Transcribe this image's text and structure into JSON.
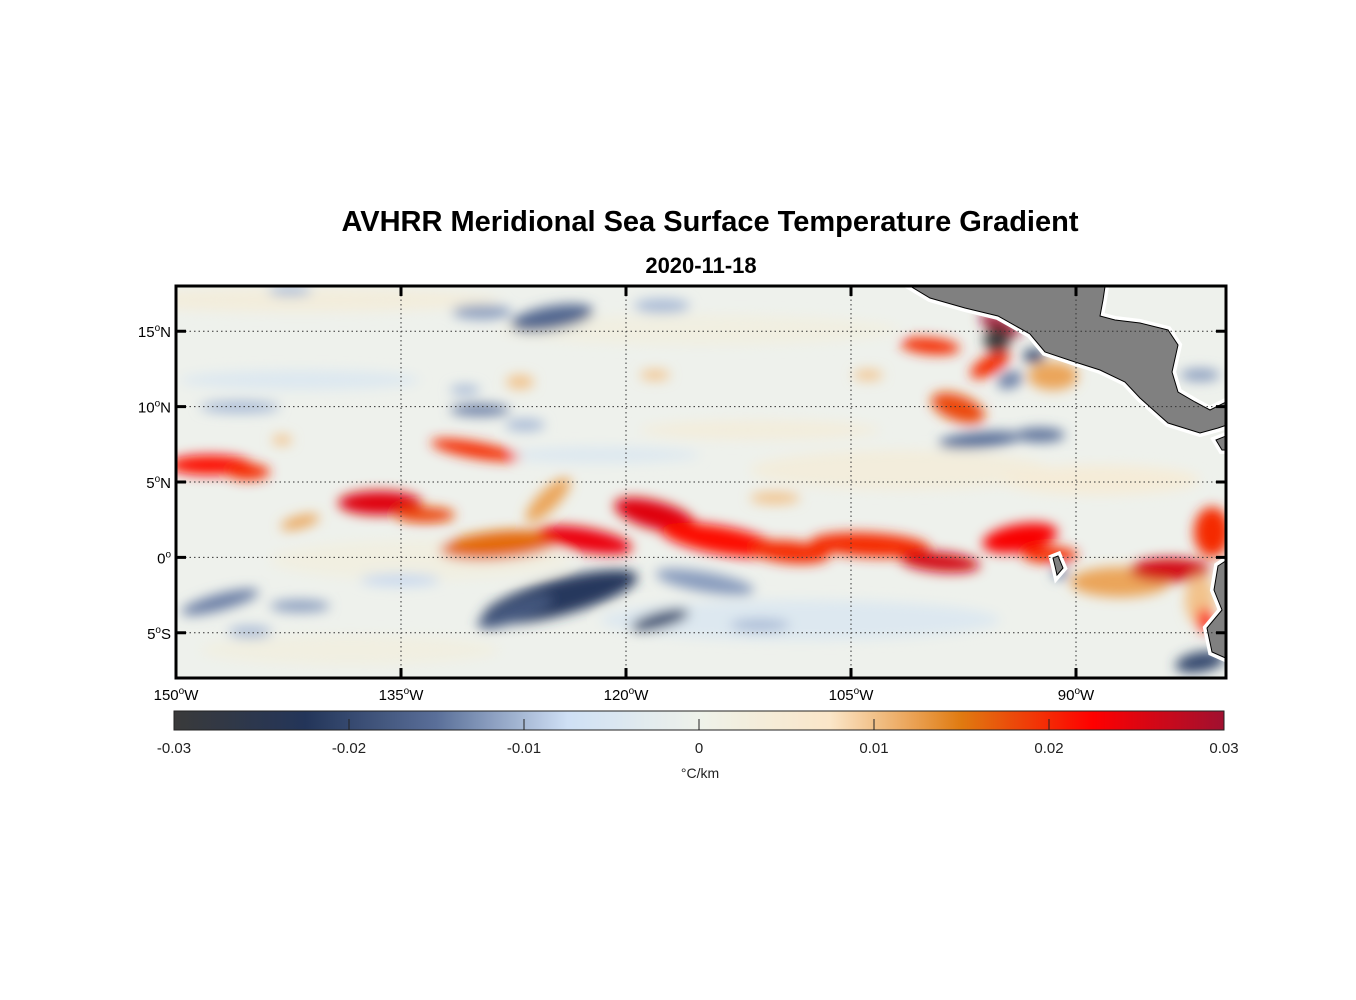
{
  "title": "AVHRR Meridional Sea Surface Temperature Gradient",
  "subtitle": "2020-11-18",
  "chart_data": {
    "type": "heatmap",
    "title": "AVHRR Meridional Sea Surface Temperature Gradient",
    "subtitle": "2020-11-18",
    "lon_range": [
      -150,
      -80
    ],
    "lat_range": [
      -8,
      18
    ],
    "x_ticks": [
      {
        "value": -150,
        "label": "150",
        "suffix": "W"
      },
      {
        "value": -135,
        "label": "135",
        "suffix": "W"
      },
      {
        "value": -120,
        "label": "120",
        "suffix": "W"
      },
      {
        "value": -105,
        "label": "105",
        "suffix": "W"
      },
      {
        "value": -90,
        "label": "90",
        "suffix": "W"
      }
    ],
    "y_ticks": [
      {
        "value": 15,
        "label": "15",
        "suffix": "N"
      },
      {
        "value": 10,
        "label": "10",
        "suffix": "N"
      },
      {
        "value": 5,
        "label": "5",
        "suffix": "N"
      },
      {
        "value": 0,
        "label": "0",
        "suffix": ""
      },
      {
        "value": -5,
        "label": "5",
        "suffix": "S"
      }
    ],
    "grid": true,
    "colorbar": {
      "range": [
        -0.03,
        0.03
      ],
      "ticks": [
        "-0.03",
        "-0.02",
        "-0.01",
        "0",
        "0.01",
        "0.02",
        "0.03"
      ],
      "label": "°C/km",
      "placement": "bottom",
      "colors": [
        "#3a3a3a",
        "#233559",
        "#5a6f99",
        "#cfe0f5",
        "#eef2ea",
        "#fbe6c8",
        "#e07a10",
        "#ff0000",
        "#a01030"
      ]
    },
    "land_color": "#808080",
    "features_note": "approximate gradient features (lon, lat, value in °C/km)",
    "features": [
      {
        "lon": -147.7,
        "lat": 6.2,
        "value": 0.022
      },
      {
        "lon": -136.3,
        "lat": 3.5,
        "value": 0.025
      },
      {
        "lon": -131.5,
        "lat": 7.2,
        "value": 0.02
      },
      {
        "lon": -125,
        "lat": 0.8,
        "value": 0.022
      },
      {
        "lon": -118.4,
        "lat": 2.9,
        "value": 0.025
      },
      {
        "lon": -113.6,
        "lat": 1.2,
        "value": 0.022
      },
      {
        "lon": -104,
        "lat": 0.9,
        "value": 0.02
      },
      {
        "lon": -99.4,
        "lat": -0.1,
        "value": 0.025
      },
      {
        "lon": -93.4,
        "lat": 1.2,
        "value": 0.022
      },
      {
        "lon": -85.4,
        "lat": -0.8,
        "value": 0.025
      },
      {
        "lon": -98.4,
        "lat": 15.5,
        "value": 0.03
      },
      {
        "lon": -122.5,
        "lat": -2.5,
        "value": -0.022
      },
      {
        "lon": -122.1,
        "lat": 15.9,
        "value": -0.015
      },
      {
        "lon": -98.9,
        "lat": 14.5,
        "value": -0.03
      }
    ]
  }
}
